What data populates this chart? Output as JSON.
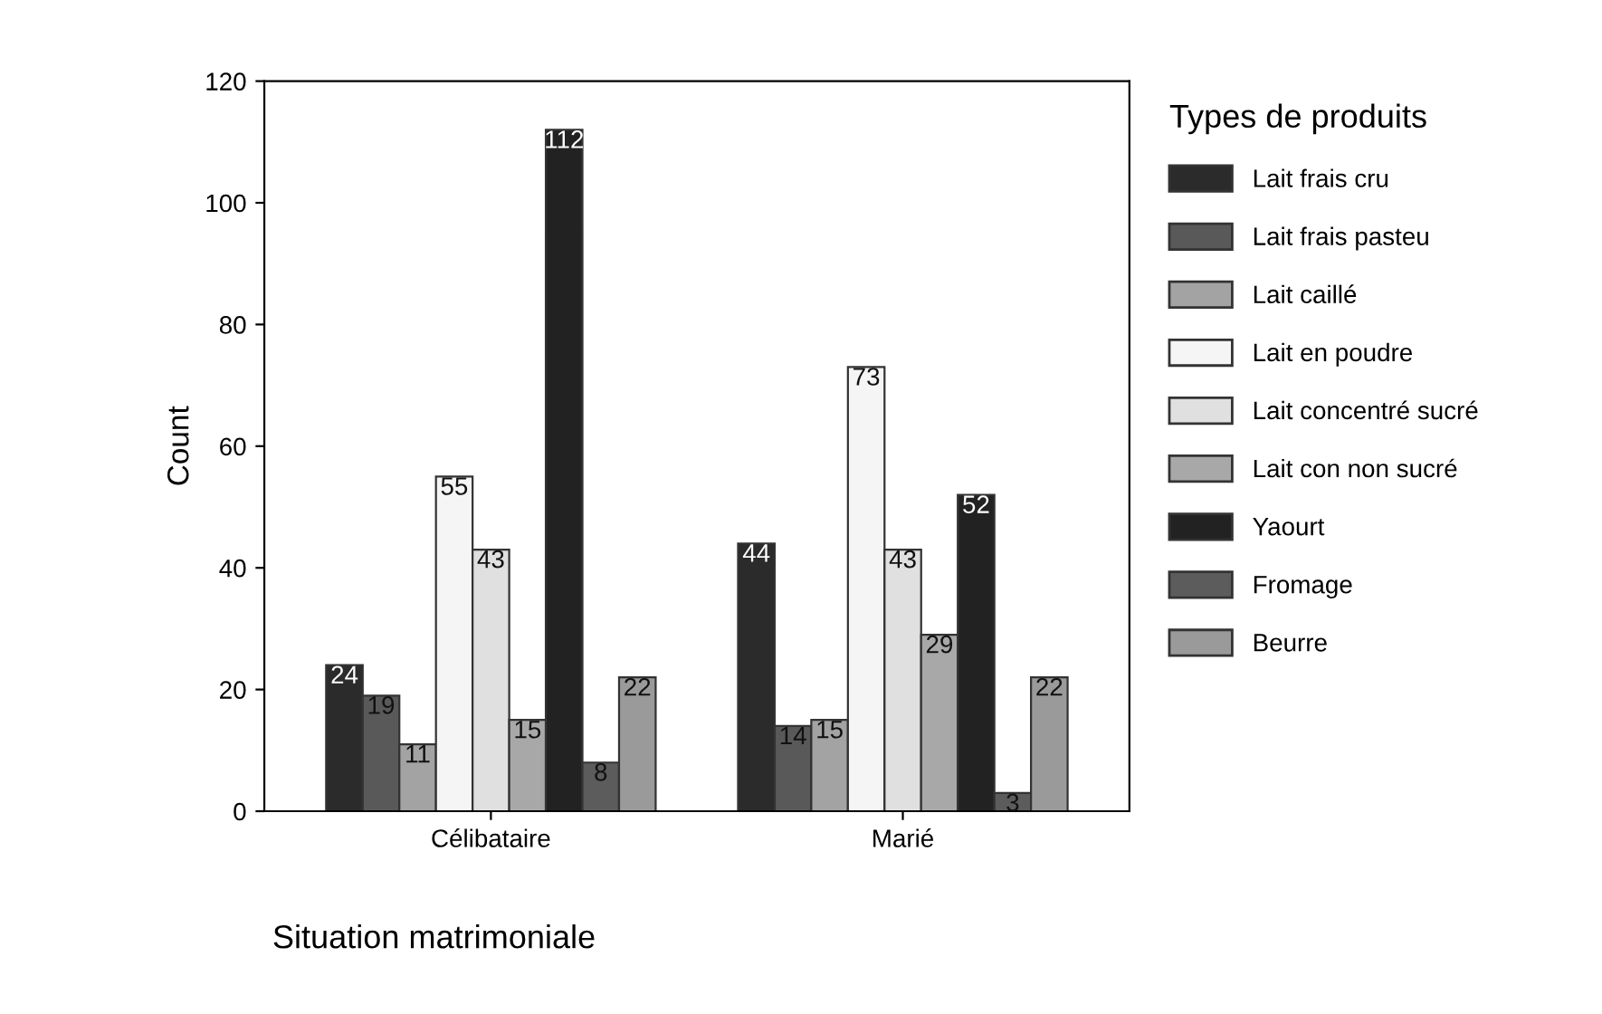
{
  "chart_data": {
    "type": "bar",
    "xlabel": "Situation matrimoniale",
    "ylabel": "Count",
    "legend_title": "Types de produits",
    "categories": [
      "Célibataire",
      "Marié"
    ],
    "series": [
      {
        "name": "Lait frais cru",
        "color": "#2b2b2b",
        "values": [
          24,
          44
        ]
      },
      {
        "name": "Lait frais pasteu",
        "color": "#595959",
        "values": [
          19,
          14
        ]
      },
      {
        "name": "Lait caillé",
        "color": "#a3a3a3",
        "values": [
          11,
          15
        ]
      },
      {
        "name": "Lait en poudre",
        "color": "#f5f5f5",
        "values": [
          55,
          73
        ]
      },
      {
        "name": "Lait concentré sucré",
        "color": "#e0e0e0",
        "values": [
          43,
          43
        ]
      },
      {
        "name": "Lait con non sucré",
        "color": "#a8a8a8",
        "values": [
          15,
          29
        ]
      },
      {
        "name": "Yaourt",
        "color": "#222222",
        "values": [
          112,
          52
        ]
      },
      {
        "name": "Fromage",
        "color": "#5c5c5c",
        "values": [
          8,
          3
        ]
      },
      {
        "name": "Beurre",
        "color": "#9a9a9a",
        "values": [
          22,
          22
        ]
      }
    ],
    "ylim": [
      0,
      120
    ],
    "yticks": [
      0,
      20,
      40,
      60,
      80,
      100,
      120
    ],
    "data_labels": true,
    "legend": "right",
    "grid": false
  }
}
